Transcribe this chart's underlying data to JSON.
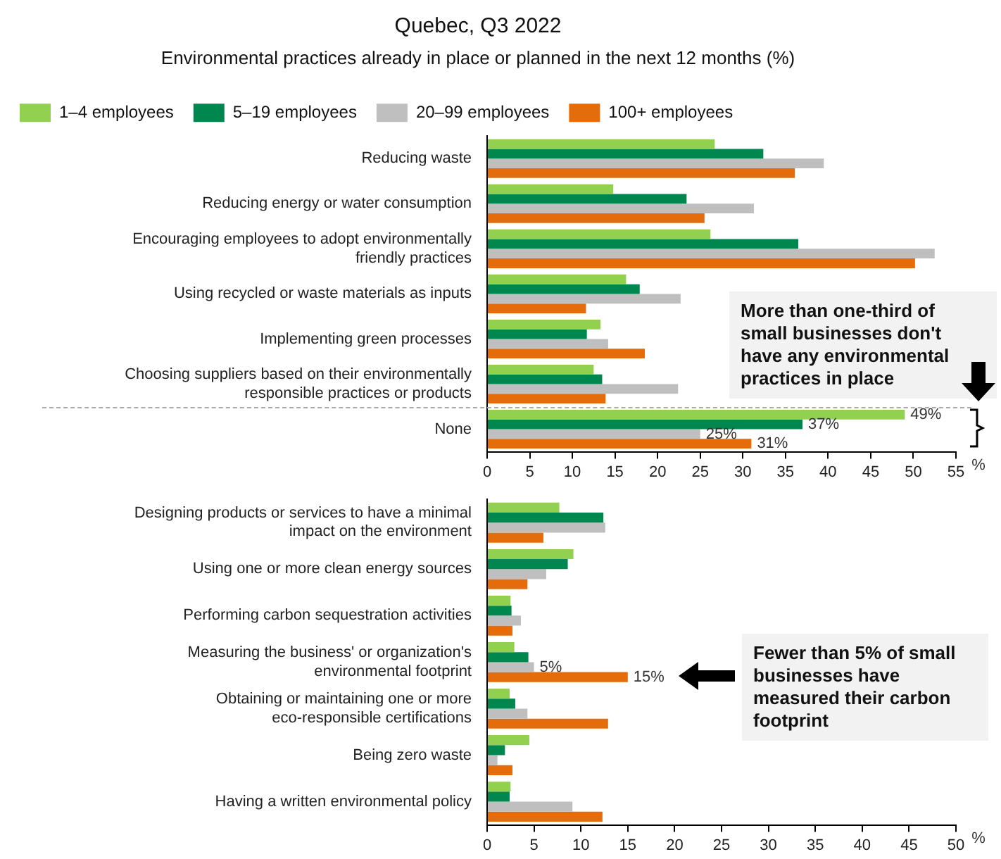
{
  "chart_data": [
    {
      "type": "bar",
      "orientation": "horizontal",
      "title": "Quebec, Q3 2022",
      "subtitle": "Environmental practices already in place or planned in the next 12 months (%)",
      "xlabel": "%",
      "legend": "top left",
      "grid": false,
      "categories": [
        "Reducing waste",
        "Reducing energy or water consumption",
        "Encouraging employees to adopt environmentally friendly practices",
        "Using recycled or waste materials as inputs",
        "Implementing green processes",
        "Choosing suppliers based on their environmentally responsible practices or products",
        "None"
      ],
      "series": [
        {
          "name": "1–4 employees",
          "color": "#92d050",
          "values": [
            26.7,
            14.8,
            26.2,
            16.3,
            13.3,
            12.5,
            49
          ],
          "value_labels": [
            null,
            null,
            null,
            null,
            null,
            null,
            "49%"
          ]
        },
        {
          "name": "5–19 employees",
          "color": "#00874f",
          "values": [
            32.4,
            23.4,
            36.5,
            17.9,
            11.7,
            13.5,
            37
          ],
          "value_labels": [
            null,
            null,
            null,
            null,
            null,
            null,
            "37%"
          ]
        },
        {
          "name": "20–99 employees",
          "color": "#bfbfbf",
          "values": [
            39.5,
            31.3,
            52.5,
            22.7,
            14.2,
            22.4,
            25
          ],
          "value_labels": [
            null,
            null,
            null,
            null,
            null,
            null,
            "25%"
          ]
        },
        {
          "name": "100+ employees",
          "color": "#e46c0a",
          "values": [
            36.1,
            25.5,
            50.2,
            11.6,
            18.5,
            13.9,
            31
          ],
          "value_labels": [
            null,
            null,
            null,
            null,
            null,
            null,
            "31%"
          ]
        }
      ],
      "xlim": [
        0,
        55
      ],
      "xticks": [
        0,
        5,
        10,
        15,
        20,
        25,
        30,
        35,
        40,
        45,
        50,
        55
      ],
      "annotations": [
        "More than one-third of small businesses don't have any environmental practices in place"
      ]
    },
    {
      "type": "bar",
      "orientation": "horizontal",
      "xlabel": "%",
      "grid": false,
      "categories": [
        "Designing products or services to have a minimal impact on the environment",
        "Using one or more clean energy sources",
        "Performing carbon sequestration activities",
        "Measuring the business' or organization's environmental footprint",
        "Obtaining or maintaining one or more eco-responsible certifications",
        "Being zero waste",
        "Having a written environmental policy"
      ],
      "series": [
        {
          "color": "#92d050",
          "values": [
            7.7,
            9.2,
            2.5,
            2.9,
            2.4,
            4.5,
            2.5
          ]
        },
        {
          "color": "#00874f",
          "values": [
            12.4,
            8.6,
            2.6,
            4.4,
            3.0,
            1.9,
            2.4
          ]
        },
        {
          "color": "#bfbfbf",
          "values": [
            12.6,
            6.3,
            3.6,
            5,
            4.3,
            1.1,
            9.1
          ],
          "value_labels": [
            null,
            null,
            null,
            "5%",
            null,
            null,
            null
          ]
        },
        {
          "color": "#e46c0a",
          "values": [
            6.0,
            4.3,
            2.7,
            15,
            12.9,
            2.7,
            12.3
          ],
          "value_labels": [
            null,
            null,
            null,
            "15%",
            null,
            null,
            null
          ]
        }
      ],
      "xlim": [
        0,
        50
      ],
      "xticks": [
        0,
        5,
        10,
        15,
        20,
        25,
        30,
        35,
        40,
        45,
        50
      ],
      "annotations": [
        "Fewer than 5% of small businesses have measured their carbon footprint"
      ]
    }
  ]
}
